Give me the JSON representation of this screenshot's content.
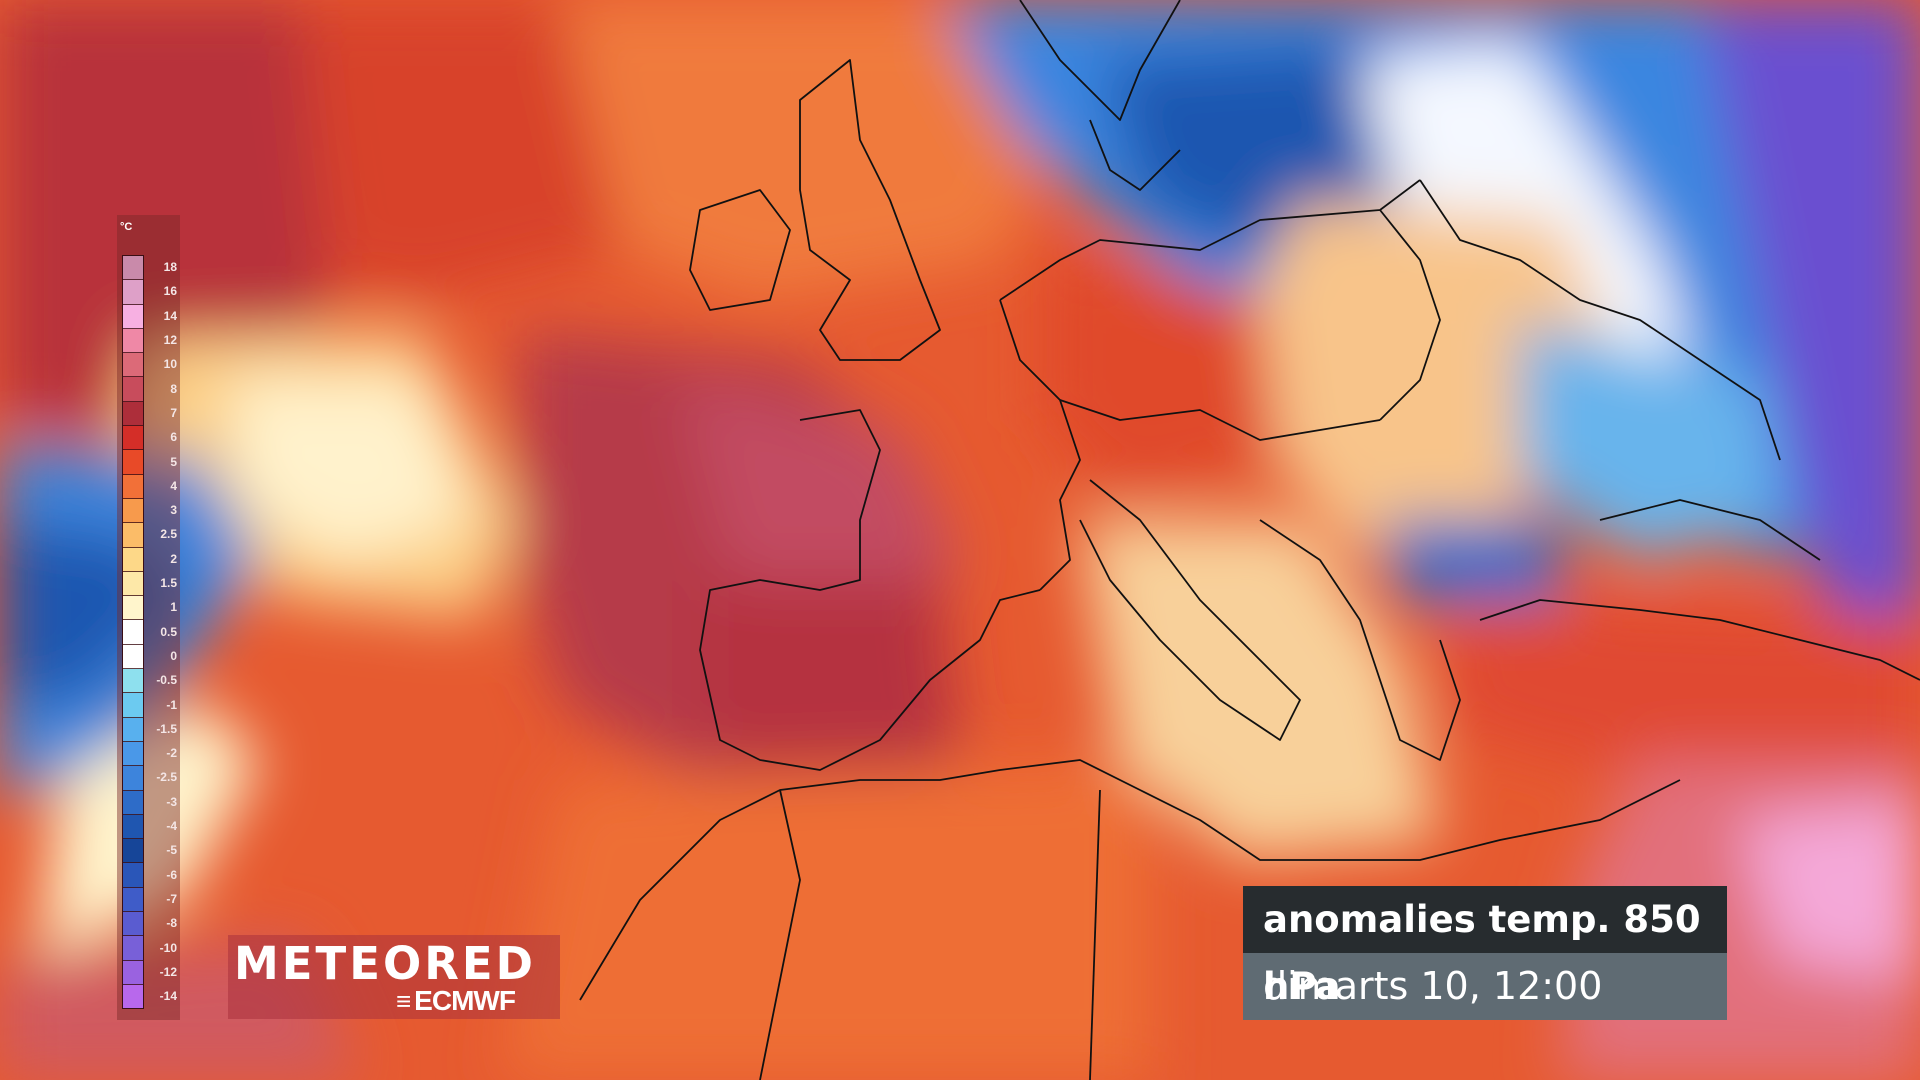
{
  "map": {
    "title": "anomalies temp. 850 hPa",
    "valid_time": "dimarts 10, 12:00",
    "region": "Europe, North Africa, North Atlantic",
    "colors": {
      "ocean_warm": "#e0552c",
      "hot_core": "#b83a44",
      "cold_north": "#2a6fc8",
      "very_cold_east": "#6a4fd0",
      "neutral": "#ffffff",
      "border_lines": "#111111"
    }
  },
  "legend": {
    "unit": "°C",
    "levels": [
      "18",
      "16",
      "14",
      "12",
      "10",
      "8",
      "7",
      "6",
      "5",
      "4",
      "3",
      "2.5",
      "2",
      "1.5",
      "1",
      "0.5",
      "0",
      "-0.5",
      "-1",
      "-1.5",
      "-2",
      "-2.5",
      "-3",
      "-4",
      "-5",
      "-6",
      "-7",
      "-8",
      "-10",
      "-12",
      "-14"
    ],
    "cell_colors": [
      "#c98aaa",
      "#dea0c8",
      "#f7b0e2",
      "#ef88a6",
      "#dc6a78",
      "#c84c5c",
      "#ad2e3a",
      "#d42e28",
      "#e84a28",
      "#f27038",
      "#f79a4c",
      "#fbbc68",
      "#fdd888",
      "#fde8a8",
      "#fff5cc",
      "#ffffff",
      "#ffffff",
      "#8ee0ee",
      "#6ccaf0",
      "#58b0ee",
      "#4a98e8",
      "#3d84dc",
      "#2e6cc8",
      "#1f56b0",
      "#164598",
      "#2a56b8",
      "#3f5cc8",
      "#5a5cd0",
      "#7860d8",
      "#9a62e0",
      "#b868ec"
    ]
  },
  "logo": {
    "brand": "METEORED",
    "partner": "ECMWF"
  }
}
